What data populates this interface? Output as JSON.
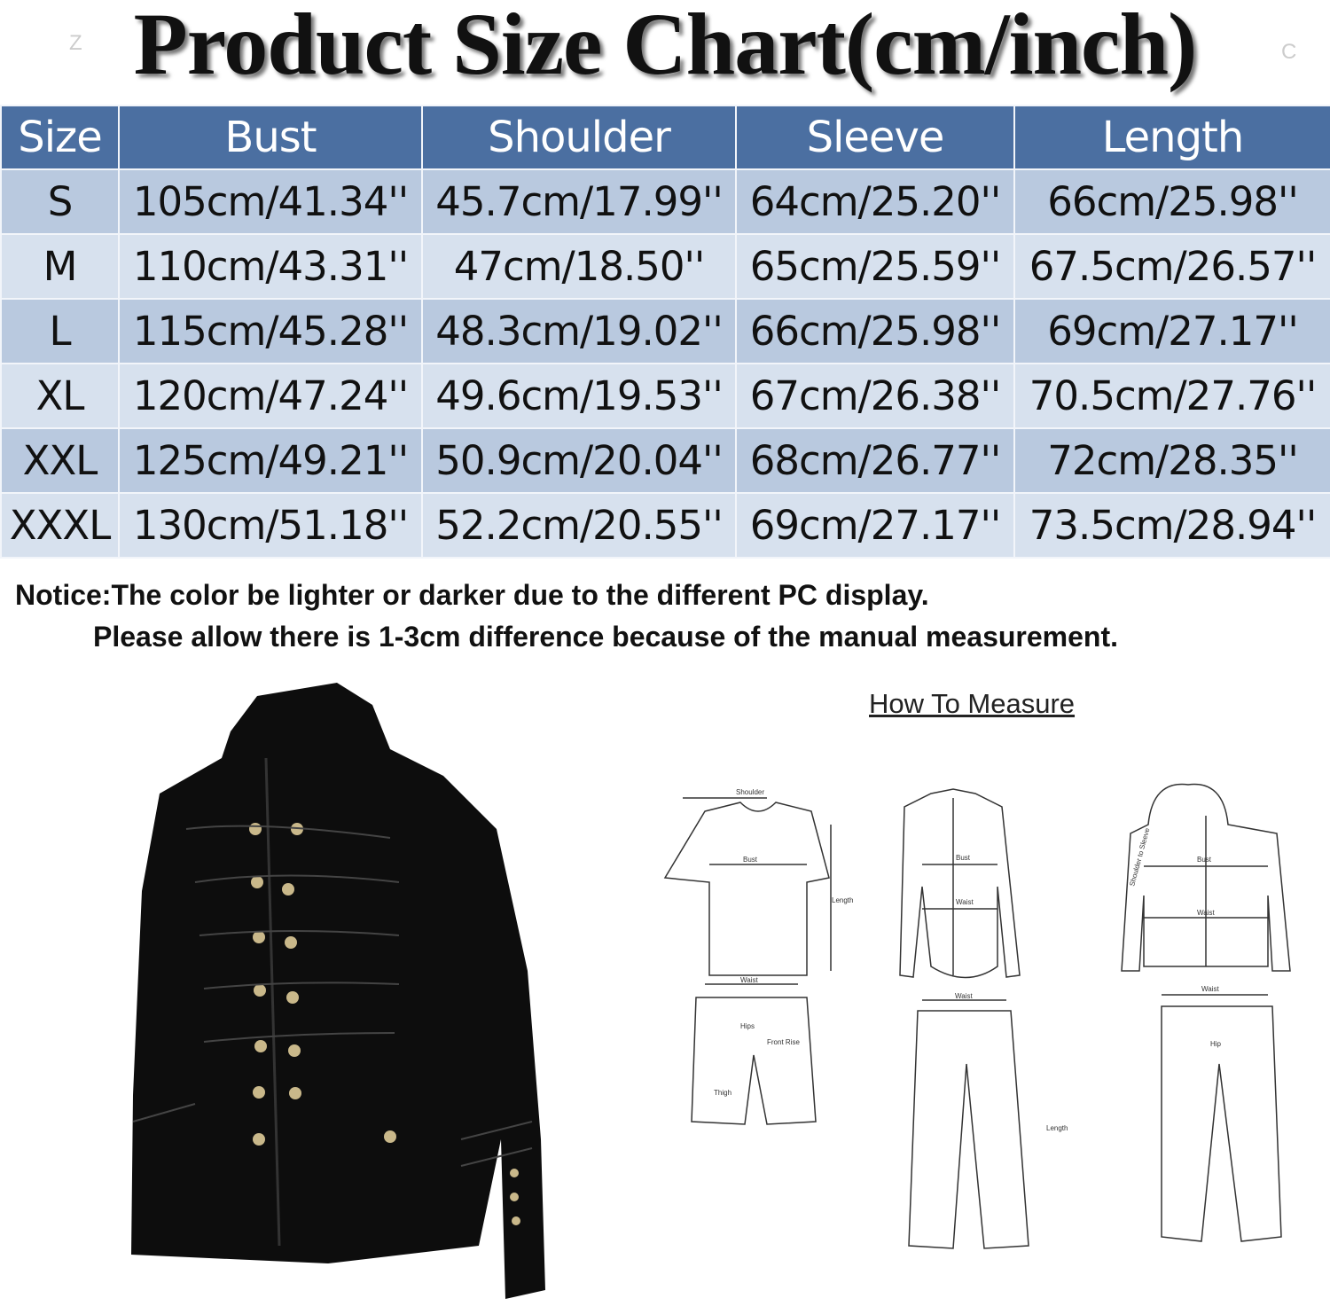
{
  "title": "Product Size Chart(cm/inch)",
  "corner_marks": [
    "Z",
    "C"
  ],
  "table": {
    "headers": [
      "Size",
      "Bust",
      "Shoulder",
      "Sleeve",
      "Length"
    ],
    "rows": [
      [
        "S",
        "105cm/41.34''",
        "45.7cm/17.99''",
        "64cm/25.20''",
        "66cm/25.98''"
      ],
      [
        "M",
        "110cm/43.31''",
        "47cm/18.50''",
        "65cm/25.59''",
        "67.5cm/26.57''"
      ],
      [
        "L",
        "115cm/45.28''",
        "48.3cm/19.02''",
        "66cm/25.98''",
        "69cm/27.17''"
      ],
      [
        "XL",
        "120cm/47.24''",
        "49.6cm/19.53''",
        "67cm/26.38''",
        "70.5cm/27.76''"
      ],
      [
        "XXL",
        "125cm/49.21''",
        "50.9cm/20.04''",
        "68cm/26.77''",
        "72cm/28.35''"
      ],
      [
        "XXXL",
        "130cm/51.18''",
        "52.2cm/20.55''",
        "69cm/27.17''",
        "73.5cm/28.94''"
      ]
    ]
  },
  "notice": {
    "line1": "Notice:The color be lighter or darker due to the different PC display.",
    "line2": "Please allow there is 1-3cm difference because of the manual measurement."
  },
  "how_to_measure": {
    "title": "How To Measure",
    "labels": {
      "shoulder": "Shoulder",
      "bust": "Bust",
      "length": "Length",
      "sleeve": "Sleeve",
      "waist": "Waist",
      "hips": "Hips",
      "front_rise": "Front Rise",
      "thigh": "Thigh",
      "hip": "Hip",
      "shoulder_to_sleeve": "Shoulder to Sleeve"
    }
  },
  "colors": {
    "header_bg": "#4b6fa1",
    "row_dark": "#b9c9df",
    "row_light": "#d7e1ee"
  }
}
